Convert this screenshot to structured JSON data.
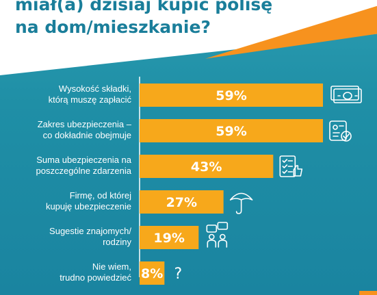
{
  "header": {
    "title_line1": "miał(a) dzisiaj kupić polisę",
    "title_line2": "na dom/mieszkanie?"
  },
  "colors": {
    "bar": "#f7a81b",
    "axis": "#ffffff",
    "title": "#1a7e9a",
    "accent": "#f7921e"
  },
  "chart_data": {
    "type": "bar",
    "orientation": "horizontal",
    "categories": [
      [
        "Wysokość składki,",
        "którą muszę zapłacić"
      ],
      [
        "Zakres ubezpieczenia –",
        "co dokładnie obejmuje"
      ],
      [
        "Suma ubezpieczenia na",
        "poszczególne zdarzenia"
      ],
      [
        "Firmę, od której",
        "kupuję ubezpieczenie"
      ],
      [
        "Sugestie znajomych/",
        "rodziny"
      ],
      [
        "Nie wiem,",
        "trudno powiedzieć"
      ]
    ],
    "values": [
      59,
      59,
      43,
      27,
      19,
      8
    ],
    "value_labels": [
      "59%",
      "59%",
      "43%",
      "27%",
      "19%",
      "8%"
    ],
    "icons": [
      "money-icon",
      "document-check-icon",
      "checklist-thumb-icon",
      "umbrella-icon",
      "people-chat-icon",
      "question-icon"
    ],
    "question_glyph": "?",
    "xlim": [
      0,
      59
    ]
  }
}
